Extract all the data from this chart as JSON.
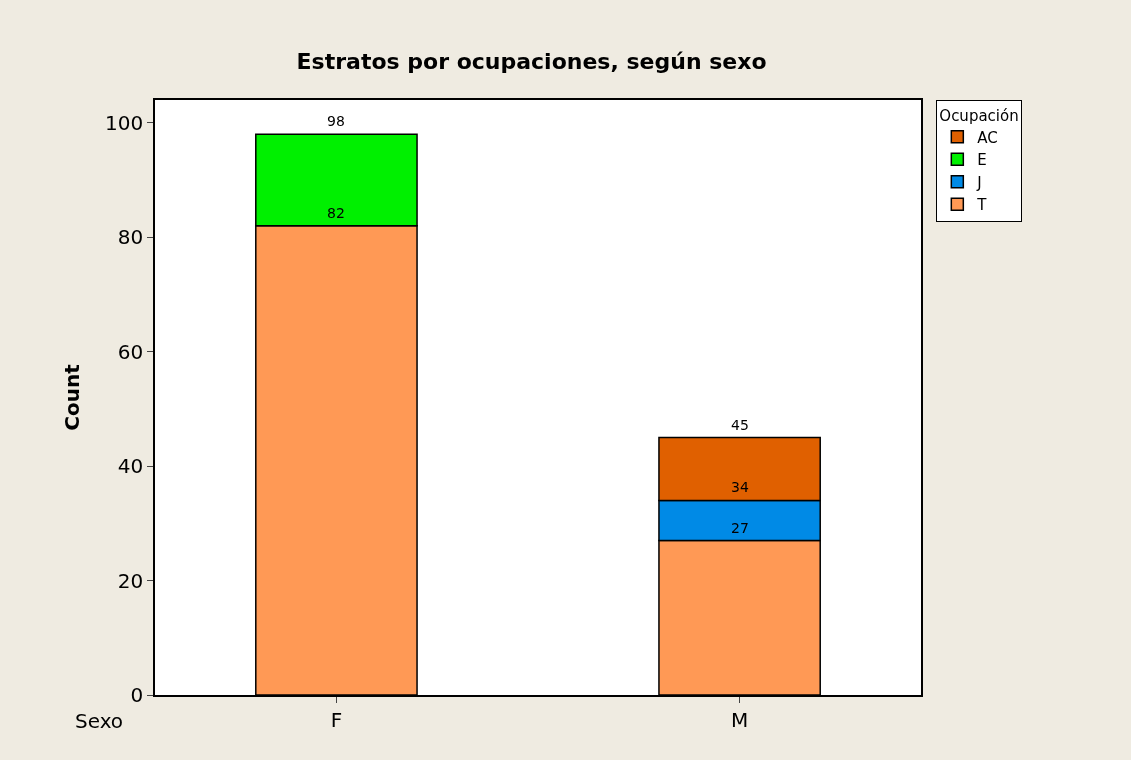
{
  "chart_data": {
    "type": "bar",
    "title": "Estratos por ocupaciones, según sexo",
    "xlabel": "Sexo",
    "ylabel": "Count",
    "legend_title": "Ocupación",
    "categories": [
      "F",
      "M"
    ],
    "stacked": true,
    "ylim": [
      0,
      104
    ],
    "yticks": [
      0,
      20,
      40,
      60,
      80,
      100
    ],
    "legend": "top right",
    "series": [
      {
        "name": "T",
        "color": "#ff9955",
        "values": [
          82,
          27
        ]
      },
      {
        "name": "J",
        "color": "#008ae6",
        "values": [
          null,
          7
        ]
      },
      {
        "name": "E",
        "color": "#00f000",
        "values": [
          16,
          null
        ]
      },
      {
        "name": "AC",
        "color": "#e06000",
        "values": [
          null,
          11
        ]
      }
    ],
    "annotations": [
      {
        "text": "98",
        "x": "F",
        "y": 98
      },
      {
        "text": "82",
        "x": "F",
        "y": 82
      },
      {
        "text": "45",
        "x": "M",
        "y": 45
      },
      {
        "text": "34",
        "x": "M",
        "y": 34
      },
      {
        "text": "27",
        "x": "M",
        "y": 27
      }
    ]
  }
}
